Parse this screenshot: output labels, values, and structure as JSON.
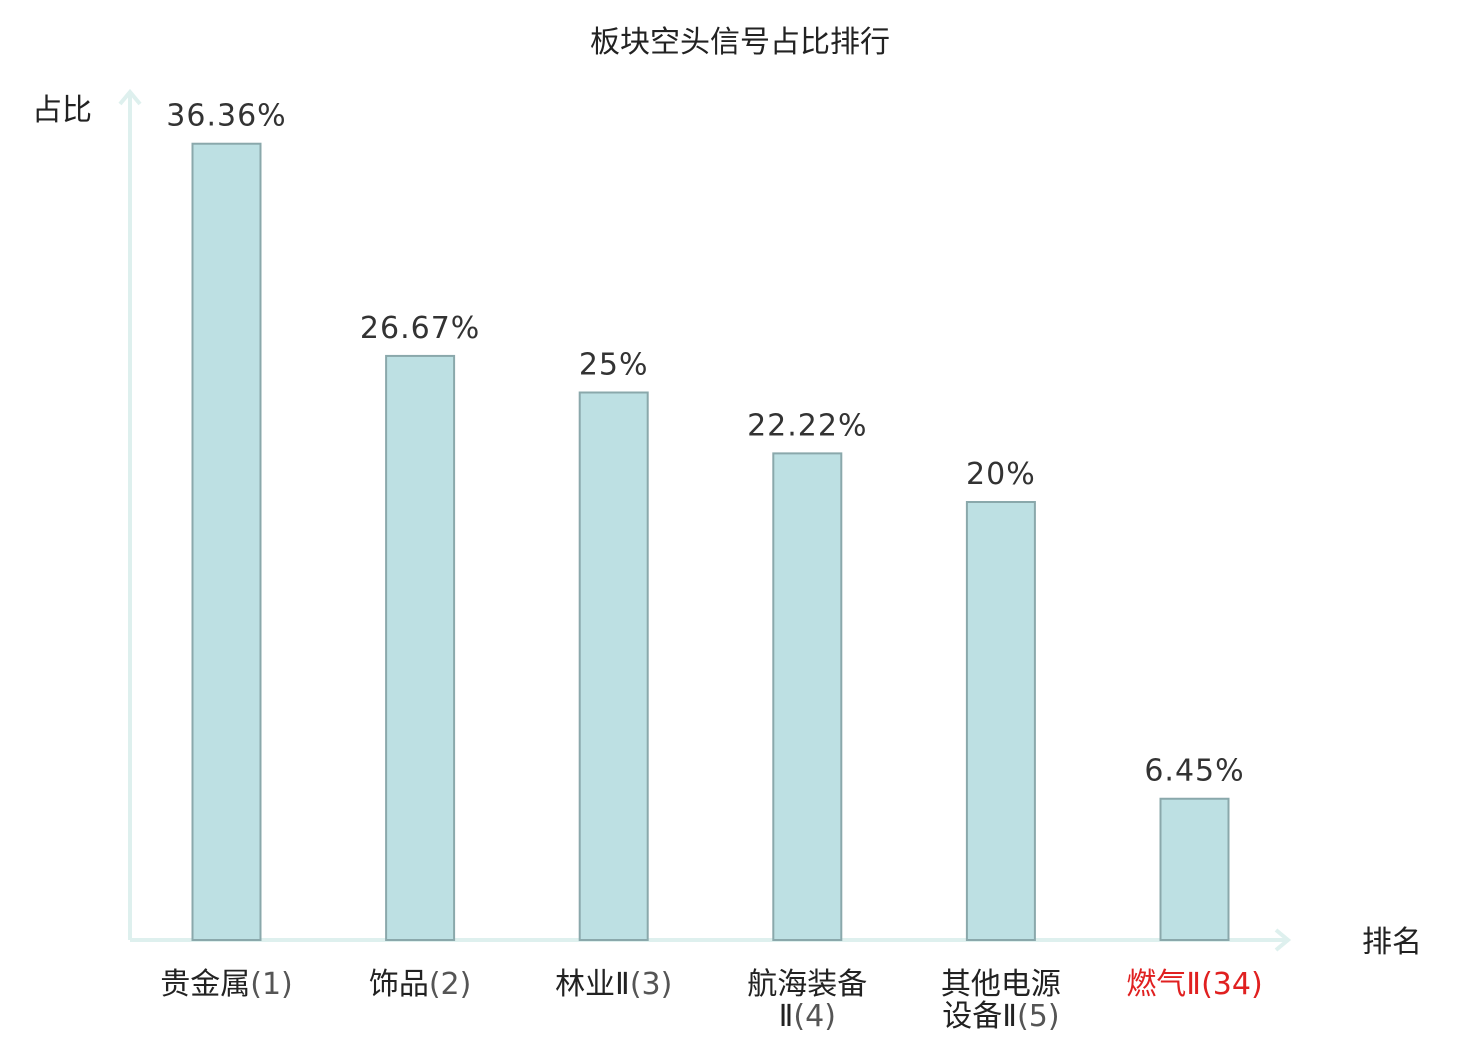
{
  "chart_data": {
    "type": "bar",
    "title": "板块空头信号占比排行",
    "ylabel": "占比",
    "xlabel": "排名",
    "categories": [
      {
        "name_lines": [
          "贵金属"
        ],
        "rank": "(1)",
        "highlight": false
      },
      {
        "name_lines": [
          "饰品"
        ],
        "rank": "(2)",
        "highlight": false
      },
      {
        "name_lines": [
          "林业Ⅱ"
        ],
        "rank": "(3)",
        "highlight": false
      },
      {
        "name_lines": [
          "航海装备",
          "Ⅱ"
        ],
        "rank": "(4)",
        "highlight": false
      },
      {
        "name_lines": [
          "其他电源",
          "设备Ⅱ"
        ],
        "rank": "(5)",
        "highlight": false
      },
      {
        "name_lines": [
          "燃气Ⅱ"
        ],
        "rank": "(34)",
        "highlight": true
      }
    ],
    "values": [
      36.36,
      26.67,
      25,
      22.22,
      20,
      6.45
    ],
    "value_labels": [
      "36.36%",
      "26.67%",
      "25%",
      "22.22%",
      "20%",
      "6.45%"
    ],
    "ylim": [
      0,
      40
    ],
    "grid": false,
    "legend": "none",
    "colors": {
      "bar_fill": "#bde0e3",
      "bar_stroke": "#8aa8ab",
      "axis": "#def0ee",
      "highlight_text": "#e02020",
      "text": "#222222"
    }
  }
}
